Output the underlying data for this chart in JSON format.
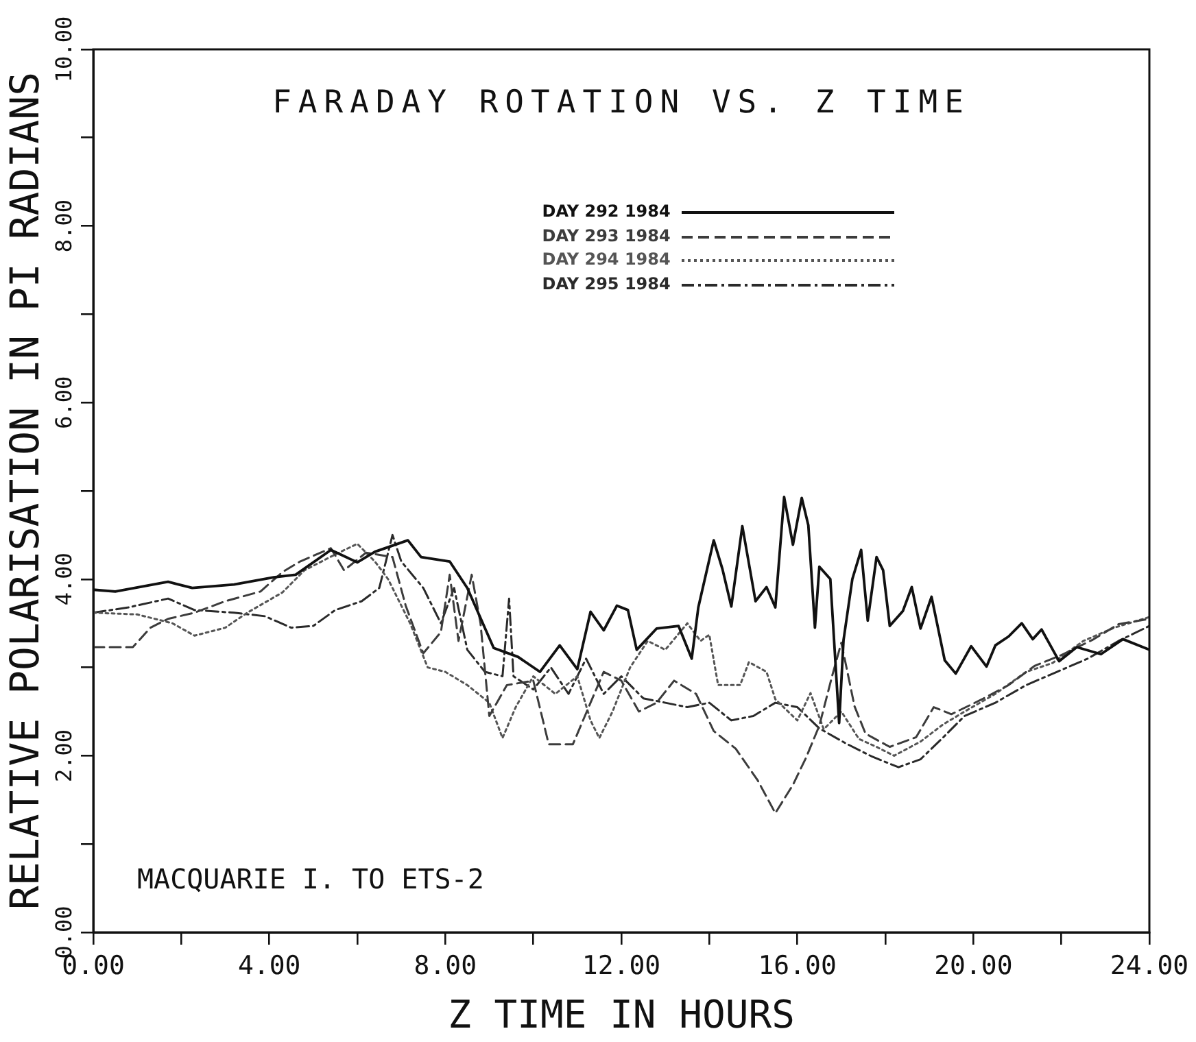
{
  "chart_data": {
    "type": "line",
    "title": "FARADAY ROTATION VS. Z TIME",
    "xlabel": "Z TIME IN HOURS",
    "ylabel": "RELATIVE POLARISATION IN PI RADIANS",
    "annotations": [
      "MACQUARIE I. TO ETS-2"
    ],
    "xlim": [
      0,
      24
    ],
    "ylim": [
      0,
      10
    ],
    "xticks": [
      {
        "value": 0,
        "label": "0.00"
      },
      {
        "value": 2,
        "label": null
      },
      {
        "value": 4,
        "label": "4.00"
      },
      {
        "value": 6,
        "label": null
      },
      {
        "value": 8,
        "label": "8.00"
      },
      {
        "value": 10,
        "label": null
      },
      {
        "value": 12,
        "label": "12.00"
      },
      {
        "value": 14,
        "label": null
      },
      {
        "value": 16,
        "label": "16.00"
      },
      {
        "value": 18,
        "label": null
      },
      {
        "value": 20,
        "label": "20.00"
      },
      {
        "value": 22,
        "label": null
      },
      {
        "value": 24,
        "label": "24.00"
      }
    ],
    "yticks": [
      {
        "value": 0,
        "label": "0.00"
      },
      {
        "value": 1,
        "label": null
      },
      {
        "value": 2,
        "label": "2.00"
      },
      {
        "value": 3,
        "label": null
      },
      {
        "value": 4,
        "label": "4.00"
      },
      {
        "value": 5,
        "label": null
      },
      {
        "value": 6,
        "label": "6.00"
      },
      {
        "value": 7,
        "label": null
      },
      {
        "value": 8,
        "label": "8.00"
      },
      {
        "value": 9,
        "label": null
      },
      {
        "value": 10,
        "label": "10.00"
      }
    ],
    "grid": false,
    "legend": "top",
    "marker": "none",
    "series": [
      {
        "name": "DAY 292 1984",
        "color": "#111111",
        "line_style": "solid",
        "x": [
          0,
          0.5,
          1.7,
          2.25,
          3.2,
          4.1,
          4.6,
          5.4,
          6.0,
          6.4,
          7.15,
          7.45,
          8.1,
          8.5,
          9.1,
          9.65,
          10.15,
          10.6,
          11.0,
          11.3,
          11.6,
          11.9,
          12.15,
          12.35,
          12.8,
          13.3,
          13.6,
          13.75,
          14.1,
          14.3,
          14.5,
          14.75,
          15.05,
          15.3,
          15.5,
          15.7,
          15.9,
          16.1,
          16.25,
          16.4,
          16.5,
          16.75,
          16.95,
          17.05,
          17.25,
          17.45,
          17.6,
          17.8,
          17.95,
          18.1,
          18.4,
          18.6,
          18.8,
          19.05,
          19.35,
          19.6,
          19.95,
          20.3,
          20.5,
          20.8,
          21.1,
          21.35,
          21.55,
          21.95,
          22.35,
          22.9,
          23.4,
          24
        ],
        "values": [
          3.88,
          3.86,
          3.97,
          3.9,
          3.94,
          4.02,
          4.05,
          4.33,
          4.19,
          4.31,
          4.44,
          4.25,
          4.2,
          3.9,
          3.22,
          3.12,
          2.95,
          3.25,
          2.98,
          3.63,
          3.42,
          3.7,
          3.65,
          3.2,
          3.44,
          3.47,
          3.1,
          3.68,
          4.44,
          4.11,
          3.69,
          4.6,
          3.75,
          3.91,
          3.68,
          4.93,
          4.39,
          4.92,
          4.61,
          3.45,
          4.14,
          4.0,
          2.37,
          3.31,
          4.0,
          4.33,
          3.53,
          4.25,
          4.1,
          3.47,
          3.64,
          3.91,
          3.44,
          3.8,
          3.08,
          2.93,
          3.24,
          3.01,
          3.25,
          3.35,
          3.5,
          3.32,
          3.43,
          3.07,
          3.23,
          3.15,
          3.32,
          3.2
        ]
      },
      {
        "name": "DAY 293 1984",
        "color": "#3c3c3c",
        "line_style": "dashed",
        "x": [
          0,
          0.9,
          1.3,
          1.7,
          2.3,
          3.0,
          3.8,
          4.3,
          4.7,
          5.4,
          5.7,
          6.2,
          6.8,
          7.1,
          7.5,
          7.9,
          8.1,
          8.3,
          8.6,
          8.8,
          9.0,
          9.4,
          10.0,
          10.35,
          10.9,
          11.3,
          11.6,
          12.0,
          12.4,
          12.8,
          13.2,
          13.7,
          14.1,
          14.6,
          15.1,
          15.5,
          15.9,
          16.2,
          16.5,
          16.8,
          17.0,
          17.3,
          17.55,
          18.1,
          18.7,
          19.1,
          19.5,
          20.2,
          20.8,
          21.4,
          22.0,
          22.7,
          23.3,
          24
        ],
        "values": [
          3.23,
          3.23,
          3.45,
          3.55,
          3.62,
          3.75,
          3.86,
          4.08,
          4.2,
          4.35,
          4.1,
          4.3,
          4.25,
          3.7,
          3.16,
          3.4,
          4.05,
          3.3,
          4.05,
          3.5,
          2.45,
          2.8,
          2.85,
          2.13,
          2.13,
          2.6,
          2.95,
          2.85,
          2.5,
          2.6,
          2.85,
          2.7,
          2.28,
          2.08,
          1.72,
          1.35,
          1.67,
          1.98,
          2.34,
          2.92,
          3.28,
          2.56,
          2.25,
          2.1,
          2.21,
          2.55,
          2.47,
          2.64,
          2.8,
          3.02,
          3.14,
          3.31,
          3.49,
          3.55
        ]
      },
      {
        "name": "DAY 294 1984",
        "color": "#555555",
        "line_style": "dotted",
        "x": [
          0,
          1.0,
          1.8,
          2.3,
          3.0,
          3.5,
          4.3,
          4.8,
          5.5,
          6.0,
          6.4,
          6.7,
          7.2,
          7.6,
          8.0,
          8.5,
          9.0,
          9.3,
          9.6,
          10.0,
          10.5,
          11.0,
          11.3,
          11.5,
          11.8,
          12.2,
          12.6,
          13.0,
          13.5,
          13.8,
          14.0,
          14.2,
          14.7,
          14.9,
          15.3,
          15.5,
          16.0,
          16.3,
          16.6,
          17.0,
          17.4,
          17.8,
          18.2,
          18.8,
          19.3,
          19.8,
          20.5,
          21.2,
          21.8,
          22.5,
          23.2,
          24
        ],
        "values": [
          3.62,
          3.6,
          3.5,
          3.36,
          3.45,
          3.62,
          3.85,
          4.1,
          4.28,
          4.4,
          4.2,
          4.0,
          3.5,
          3.0,
          2.95,
          2.8,
          2.6,
          2.2,
          2.55,
          2.9,
          2.7,
          2.9,
          2.4,
          2.2,
          2.5,
          3.0,
          3.3,
          3.2,
          3.5,
          3.3,
          3.37,
          2.8,
          2.8,
          3.06,
          2.95,
          2.64,
          2.4,
          2.71,
          2.3,
          2.5,
          2.19,
          2.1,
          2.0,
          2.16,
          2.35,
          2.5,
          2.7,
          2.95,
          3.05,
          3.3,
          3.45,
          3.57
        ]
      },
      {
        "name": "DAY 295 1984",
        "color": "#2a2a2a",
        "line_style": "dashdot",
        "x": [
          0,
          0.8,
          1.7,
          2.3,
          3.2,
          3.9,
          4.5,
          5.0,
          5.5,
          6.1,
          6.5,
          6.8,
          7.0,
          7.5,
          7.9,
          8.2,
          8.5,
          8.9,
          9.3,
          9.45,
          9.55,
          10.0,
          10.4,
          10.8,
          11.2,
          11.6,
          12.0,
          12.5,
          13.0,
          13.5,
          14.0,
          14.5,
          15.0,
          15.5,
          16.0,
          16.5,
          17.1,
          17.7,
          18.3,
          18.8,
          19.3,
          19.8,
          20.5,
          21.2,
          21.9,
          22.6,
          23.3,
          24
        ],
        "values": [
          3.62,
          3.68,
          3.78,
          3.65,
          3.62,
          3.58,
          3.45,
          3.47,
          3.65,
          3.75,
          3.9,
          4.5,
          4.2,
          3.9,
          3.5,
          3.9,
          3.2,
          2.95,
          2.9,
          3.78,
          2.9,
          2.75,
          3.0,
          2.7,
          3.1,
          2.7,
          2.9,
          2.65,
          2.6,
          2.55,
          2.6,
          2.4,
          2.45,
          2.6,
          2.55,
          2.31,
          2.14,
          1.99,
          1.87,
          1.96,
          2.2,
          2.45,
          2.6,
          2.8,
          2.95,
          3.1,
          3.3,
          3.47
        ]
      }
    ]
  }
}
